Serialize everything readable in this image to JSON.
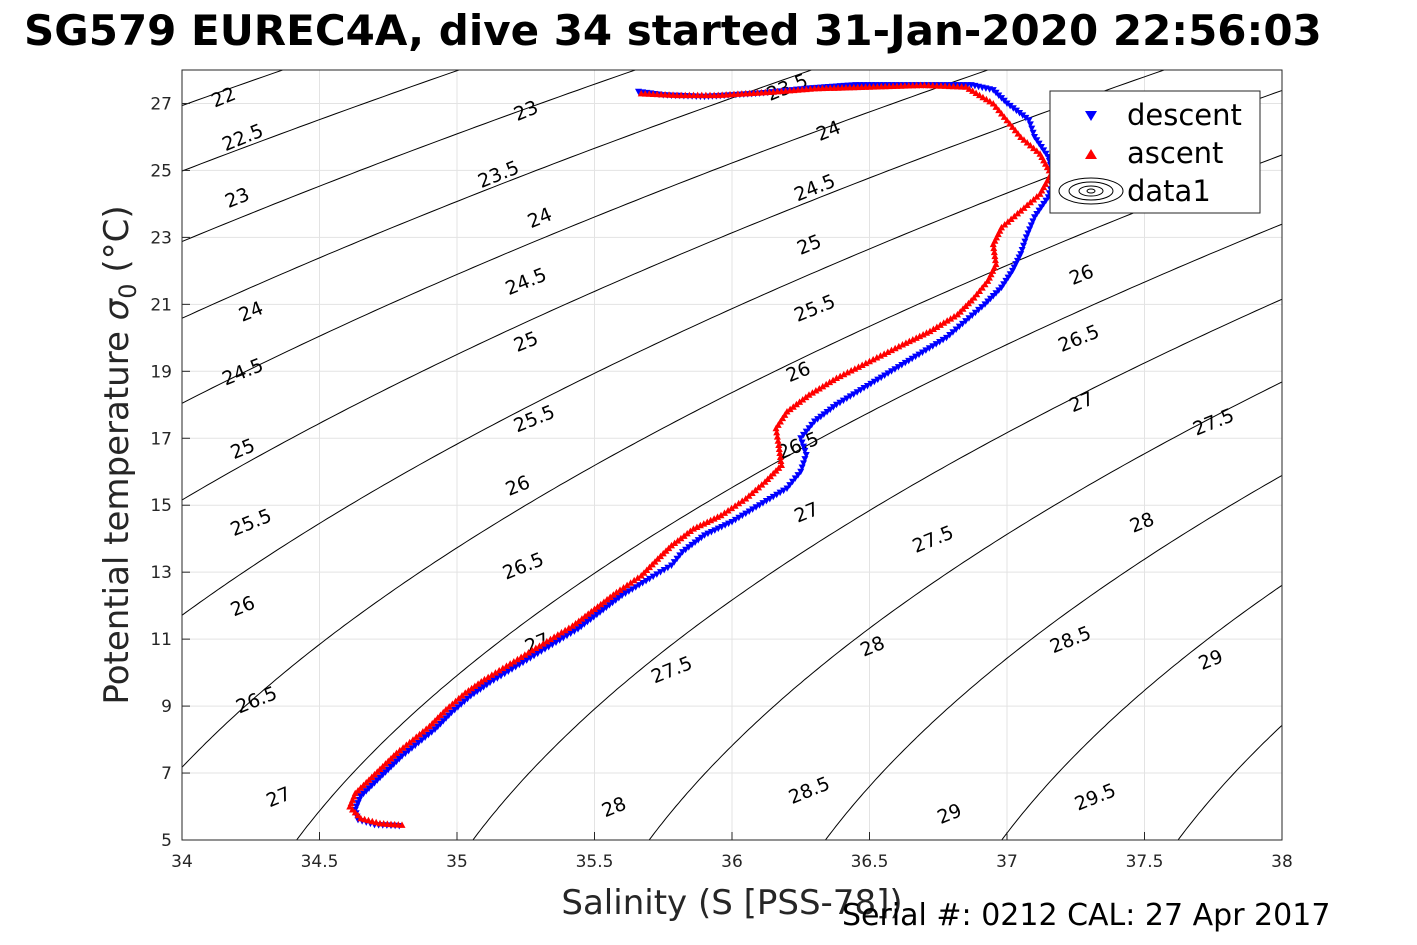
{
  "title": "SG579 EUREC4A, dive 34 started 31-Jan-2020 22:56:03",
  "footer": "Serial #: 0212  CAL: 27 Apr 2017",
  "chart_data": {
    "type": "scatter",
    "xlabel": "Salinity (S [PSS-78])",
    "ylabel_main": "Potential temperature ",
    "ylabel_sigma": "σ",
    "ylabel_sub": "0",
    "ylabel_unit": " (°C)",
    "xlim": [
      34,
      38
    ],
    "ylim": [
      5,
      28
    ],
    "xticks": [
      "34",
      "34.5",
      "35",
      "35.5",
      "36",
      "36.5",
      "37",
      "37.5",
      "38"
    ],
    "yticks": [
      "5",
      "7",
      "9",
      "11",
      "13",
      "15",
      "17",
      "19",
      "21",
      "23",
      "25",
      "27"
    ],
    "grid": true,
    "legend_position": "top-right",
    "colors": {
      "descent": "#0000ff",
      "ascent": "#ff0000",
      "contour": "#000000"
    },
    "density_contours": {
      "levels": [
        22,
        22.5,
        23,
        23.5,
        24,
        24.5,
        25,
        25.5,
        26,
        26.5,
        27,
        27.5,
        28,
        28.5,
        29,
        29.5
      ],
      "labels": [
        {
          "text": "22",
          "s": 34.15,
          "t": 27.2
        },
        {
          "text": "22.5",
          "s": 34.22,
          "t": 26.0
        },
        {
          "text": "23",
          "s": 34.2,
          "t": 24.2
        },
        {
          "text": "23",
          "s": 35.25,
          "t": 26.8
        },
        {
          "text": "23.5",
          "s": 35.15,
          "t": 24.9
        },
        {
          "text": "23.5",
          "s": 36.2,
          "t": 27.5
        },
        {
          "text": "24",
          "s": 34.25,
          "t": 20.8
        },
        {
          "text": "24",
          "s": 35.3,
          "t": 23.6
        },
        {
          "text": "24",
          "s": 36.35,
          "t": 26.2
        },
        {
          "text": "24.5",
          "s": 34.22,
          "t": 19.0
        },
        {
          "text": "24.5",
          "s": 35.25,
          "t": 21.7
        },
        {
          "text": "24.5",
          "s": 36.3,
          "t": 24.5
        },
        {
          "text": "25",
          "s": 34.22,
          "t": 16.7
        },
        {
          "text": "25",
          "s": 35.25,
          "t": 19.9
        },
        {
          "text": "25",
          "s": 36.28,
          "t": 22.8
        },
        {
          "text": "25.5",
          "s": 34.25,
          "t": 14.5
        },
        {
          "text": "25.5",
          "s": 35.28,
          "t": 17.6
        },
        {
          "text": "25.5",
          "s": 36.3,
          "t": 20.9
        },
        {
          "text": "26",
          "s": 34.22,
          "t": 12.0
        },
        {
          "text": "26",
          "s": 35.22,
          "t": 15.6
        },
        {
          "text": "26",
          "s": 36.24,
          "t": 19.0
        },
        {
          "text": "26",
          "s": 37.27,
          "t": 21.9
        },
        {
          "text": "26.5",
          "s": 34.27,
          "t": 9.2
        },
        {
          "text": "26.5",
          "s": 35.24,
          "t": 13.2
        },
        {
          "text": "26.5",
          "s": 36.24,
          "t": 16.8
        },
        {
          "text": "26.5",
          "s": 37.26,
          "t": 20.0
        },
        {
          "text": "27",
          "s": 34.35,
          "t": 6.3
        },
        {
          "text": "27",
          "s": 35.29,
          "t": 10.9
        },
        {
          "text": "27",
          "s": 36.27,
          "t": 14.8
        },
        {
          "text": "27",
          "s": 37.27,
          "t": 18.1
        },
        {
          "text": "27.5",
          "s": 35.78,
          "t": 10.1
        },
        {
          "text": "27.5",
          "s": 36.73,
          "t": 14.0
        },
        {
          "text": "27.5",
          "s": 37.75,
          "t": 17.5
        },
        {
          "text": "28",
          "s": 35.57,
          "t": 6.0
        },
        {
          "text": "28",
          "s": 36.51,
          "t": 10.8
        },
        {
          "text": "28",
          "s": 37.49,
          "t": 14.5
        },
        {
          "text": "28.5",
          "s": 36.28,
          "t": 6.5
        },
        {
          "text": "28.5",
          "s": 37.23,
          "t": 11.0
        },
        {
          "text": "29",
          "s": 36.79,
          "t": 5.8
        },
        {
          "text": "29",
          "s": 37.74,
          "t": 10.4
        },
        {
          "text": "29.5",
          "s": 37.32,
          "t": 6.3
        }
      ]
    },
    "series": [
      {
        "name": "descent",
        "marker": "triangle-down",
        "points": [
          [
            34.79,
            5.42
          ],
          [
            34.7,
            5.45
          ],
          [
            34.64,
            5.6
          ],
          [
            34.63,
            5.9
          ],
          [
            34.65,
            6.3
          ],
          [
            34.7,
            6.7
          ],
          [
            34.75,
            7.1
          ],
          [
            34.8,
            7.5
          ],
          [
            34.86,
            7.9
          ],
          [
            34.92,
            8.3
          ],
          [
            34.98,
            8.8
          ],
          [
            35.05,
            9.3
          ],
          [
            35.12,
            9.7
          ],
          [
            35.2,
            10.1
          ],
          [
            35.28,
            10.5
          ],
          [
            35.36,
            10.9
          ],
          [
            35.44,
            11.3
          ],
          [
            35.52,
            11.8
          ],
          [
            35.6,
            12.3
          ],
          [
            35.7,
            12.8
          ],
          [
            35.78,
            13.2
          ],
          [
            35.82,
            13.6
          ],
          [
            35.9,
            14.1
          ],
          [
            36.0,
            14.5
          ],
          [
            36.1,
            15.0
          ],
          [
            36.2,
            15.5
          ],
          [
            36.25,
            16.0
          ],
          [
            36.27,
            16.5
          ],
          [
            36.25,
            17.0
          ],
          [
            36.3,
            17.5
          ],
          [
            36.38,
            18.0
          ],
          [
            36.48,
            18.5
          ],
          [
            36.58,
            19.0
          ],
          [
            36.68,
            19.5
          ],
          [
            36.78,
            20.0
          ],
          [
            36.85,
            20.5
          ],
          [
            36.92,
            21.0
          ],
          [
            36.98,
            21.5
          ],
          [
            37.02,
            22.0
          ],
          [
            37.05,
            22.5
          ],
          [
            37.07,
            23.0
          ],
          [
            37.1,
            23.6
          ],
          [
            37.15,
            24.2
          ],
          [
            37.17,
            24.8
          ],
          [
            37.15,
            25.4
          ],
          [
            37.1,
            26.0
          ],
          [
            37.08,
            26.5
          ],
          [
            37.0,
            27.0
          ],
          [
            36.95,
            27.4
          ],
          [
            36.87,
            27.55
          ],
          [
            36.45,
            27.55
          ],
          [
            36.28,
            27.45
          ],
          [
            36.1,
            27.3
          ],
          [
            35.9,
            27.2
          ],
          [
            35.75,
            27.25
          ],
          [
            35.66,
            27.35
          ]
        ]
      },
      {
        "name": "ascent",
        "marker": "triangle-up",
        "points": [
          [
            34.8,
            5.45
          ],
          [
            34.72,
            5.5
          ],
          [
            34.65,
            5.65
          ],
          [
            34.61,
            6.0
          ],
          [
            34.63,
            6.4
          ],
          [
            34.68,
            6.8
          ],
          [
            34.73,
            7.2
          ],
          [
            34.78,
            7.6
          ],
          [
            34.84,
            8.0
          ],
          [
            34.9,
            8.4
          ],
          [
            34.96,
            8.9
          ],
          [
            35.03,
            9.4
          ],
          [
            35.1,
            9.8
          ],
          [
            35.18,
            10.2
          ],
          [
            35.26,
            10.6
          ],
          [
            35.34,
            11.0
          ],
          [
            35.42,
            11.4
          ],
          [
            35.5,
            11.9
          ],
          [
            35.58,
            12.4
          ],
          [
            35.67,
            12.9
          ],
          [
            35.73,
            13.4
          ],
          [
            35.78,
            13.8
          ],
          [
            35.86,
            14.3
          ],
          [
            35.96,
            14.7
          ],
          [
            36.05,
            15.2
          ],
          [
            36.12,
            15.7
          ],
          [
            36.18,
            16.2
          ],
          [
            36.17,
            16.8
          ],
          [
            36.16,
            17.3
          ],
          [
            36.2,
            17.8
          ],
          [
            36.28,
            18.3
          ],
          [
            36.38,
            18.8
          ],
          [
            36.5,
            19.3
          ],
          [
            36.62,
            19.8
          ],
          [
            36.72,
            20.2
          ],
          [
            36.82,
            20.7
          ],
          [
            36.88,
            21.2
          ],
          [
            36.93,
            21.7
          ],
          [
            36.96,
            22.2
          ],
          [
            36.95,
            22.8
          ],
          [
            36.98,
            23.3
          ],
          [
            37.05,
            23.8
          ],
          [
            37.12,
            24.3
          ],
          [
            37.16,
            24.9
          ],
          [
            37.12,
            25.5
          ],
          [
            37.05,
            26.0
          ],
          [
            37.0,
            26.5
          ],
          [
            36.95,
            27.0
          ],
          [
            36.85,
            27.5
          ],
          [
            36.7,
            27.55
          ],
          [
            36.3,
            27.45
          ],
          [
            36.15,
            27.35
          ],
          [
            35.95,
            27.25
          ],
          [
            35.8,
            27.25
          ],
          [
            35.67,
            27.3
          ]
        ]
      }
    ],
    "legend": {
      "entries": [
        "descent",
        "ascent",
        "data1"
      ]
    }
  }
}
